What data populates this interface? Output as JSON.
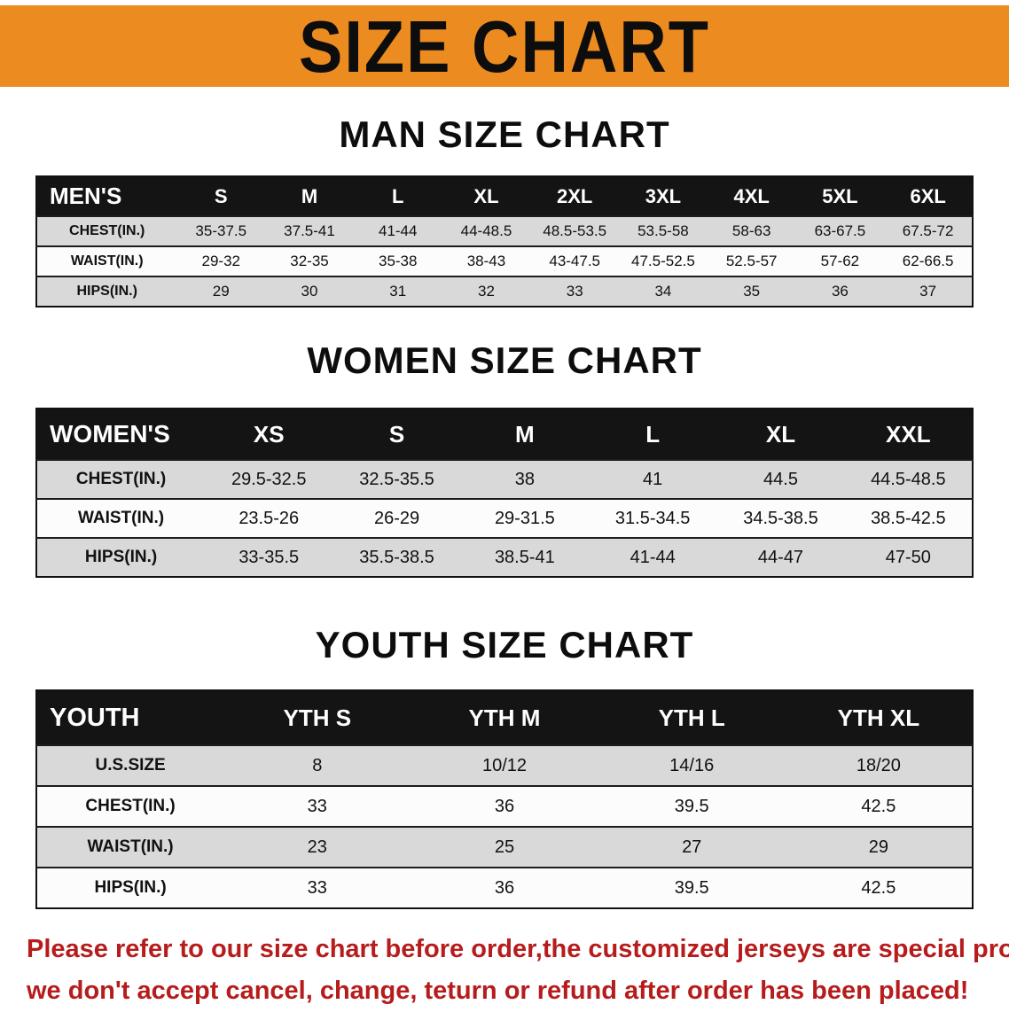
{
  "banner": {
    "title": "SIZE CHART"
  },
  "colors": {
    "banner_bg": "#EC8B20",
    "header_bg": "#141414",
    "header_text": "#FFFFFF",
    "row_gray": "#D9D9D9",
    "row_white": "#FCFCFC",
    "table_border": "#111111",
    "footer_text": "#B71C1C"
  },
  "sections": [
    {
      "heading": "MAN SIZE CHART",
      "table": {
        "label": "MEN'S",
        "columns": [
          "S",
          "M",
          "L",
          "XL",
          "2XL",
          "3XL",
          "4XL",
          "5XL",
          "6XL"
        ],
        "rows": [
          {
            "label": "CHEST(IN.)",
            "values": [
              "35-37.5",
              "37.5-41",
              "41-44",
              "44-48.5",
              "48.5-53.5",
              "53.5-58",
              "58-63",
              "63-67.5",
              "67.5-72"
            ]
          },
          {
            "label": "WAIST(IN.)",
            "values": [
              "29-32",
              "32-35",
              "35-38",
              "38-43",
              "43-47.5",
              "47.5-52.5",
              "52.5-57",
              "57-62",
              "62-66.5"
            ]
          },
          {
            "label": "HIPS(IN.)",
            "values": [
              "29",
              "30",
              "31",
              "32",
              "33",
              "34",
              "35",
              "36",
              "37"
            ]
          }
        ]
      }
    },
    {
      "heading": "WOMEN SIZE CHART",
      "table": {
        "label": "WOMEN'S",
        "columns": [
          "XS",
          "S",
          "M",
          "L",
          "XL",
          "XXL"
        ],
        "rows": [
          {
            "label": "CHEST(IN.)",
            "values": [
              "29.5-32.5",
              "32.5-35.5",
              "38",
              "41",
              "44.5",
              "44.5-48.5"
            ]
          },
          {
            "label": "WAIST(IN.)",
            "values": [
              "23.5-26",
              "26-29",
              "29-31.5",
              "31.5-34.5",
              "34.5-38.5",
              "38.5-42.5"
            ]
          },
          {
            "label": "HIPS(IN.)",
            "values": [
              "33-35.5",
              "35.5-38.5",
              "38.5-41",
              "41-44",
              "44-47",
              "47-50"
            ]
          }
        ]
      }
    },
    {
      "heading": "YOUTH SIZE CHART",
      "table": {
        "label": "YOUTH",
        "columns": [
          "YTH S",
          "YTH M",
          "YTH L",
          "YTH XL"
        ],
        "rows": [
          {
            "label": "U.S.SIZE",
            "values": [
              "8",
              "10/12",
              "14/16",
              "18/20"
            ]
          },
          {
            "label": "CHEST(IN.)",
            "values": [
              "33",
              "36",
              "39.5",
              "42.5"
            ]
          },
          {
            "label": "WAIST(IN.)",
            "values": [
              "23",
              "25",
              "27",
              "29"
            ]
          },
          {
            "label": "HIPS(IN.)",
            "values": [
              "33",
              "36",
              "39.5",
              "42.5"
            ]
          }
        ]
      }
    }
  ],
  "footer": {
    "lines": [
      "Please refer to our size chart before order,the customized jerseys are special products,",
      "we don't accept cancel, change, teturn or refund after order has been placed!"
    ]
  }
}
